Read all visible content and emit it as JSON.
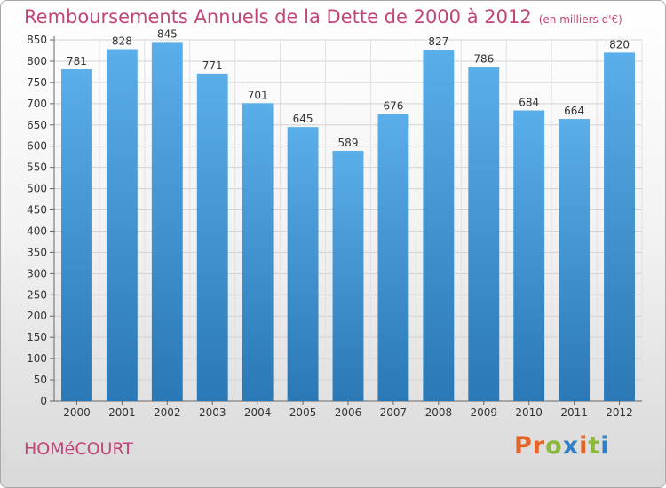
{
  "header": {
    "title": "Remboursements Annuels de la Dette de 2000 à 2012",
    "unit": "(en milliers d'€)"
  },
  "footer": {
    "city": "HOMéCOURT",
    "logo_text": "Proxiti"
  },
  "colors": {
    "accent": "#c2447a",
    "bar_top": "#5aaeea",
    "bar_bottom": "#2a78b6",
    "logo_letters": [
      "#e2662a",
      "#e2662a",
      "#8ab83a",
      "#2f7fc4",
      "#e2662a",
      "#8ab83a",
      "#2f7fc4"
    ]
  },
  "chart_data": {
    "type": "bar",
    "title": "Remboursements Annuels de la Dette de 2000 à 2012",
    "xlabel": "",
    "ylabel": "",
    "categories": [
      "2000",
      "2001",
      "2002",
      "2003",
      "2004",
      "2005",
      "2006",
      "2007",
      "2008",
      "2009",
      "2010",
      "2011",
      "2012"
    ],
    "values": [
      781,
      828,
      845,
      771,
      701,
      645,
      589,
      676,
      827,
      786,
      684,
      664,
      820
    ],
    "data_labels": [
      "781",
      "828",
      "845",
      "771",
      "701",
      "645",
      "589",
      "676",
      "827",
      "786",
      "684",
      "664",
      "820"
    ],
    "ylim": [
      0,
      850
    ],
    "yticks": [
      0,
      50,
      100,
      150,
      200,
      250,
      300,
      350,
      400,
      450,
      500,
      550,
      600,
      650,
      700,
      750,
      800,
      850
    ],
    "grid": true
  }
}
